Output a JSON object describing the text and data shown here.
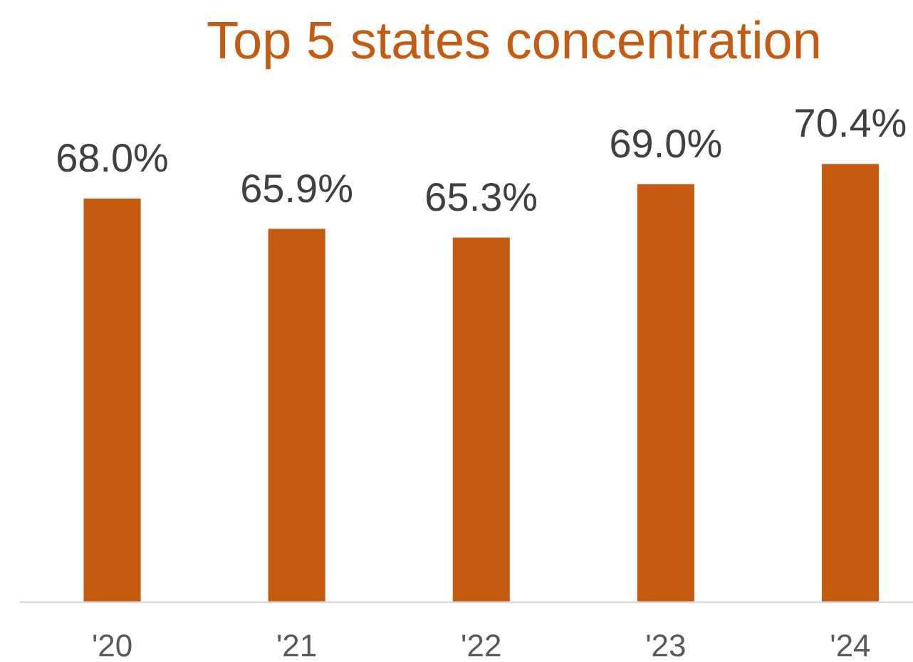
{
  "chart_data": {
    "type": "bar",
    "title": "Top 5 states concentration",
    "categories": [
      "'20",
      "'21",
      "'22",
      "'23",
      "'24"
    ],
    "values": [
      68.0,
      65.9,
      65.3,
      69.0,
      70.4
    ],
    "color": "#c55a11",
    "value_labels": [
      "68.0%",
      "65.9%",
      "65.3%",
      "69.0%",
      "70.4%"
    ],
    "ylim": [
      40,
      70.4
    ],
    "tick_labels": "x"
  }
}
